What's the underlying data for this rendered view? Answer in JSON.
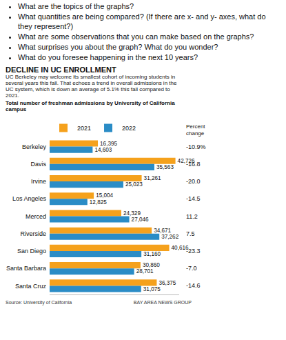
{
  "chart_data": {
    "type": "bar",
    "orientation": "horizontal",
    "annotations": [
      "What are the topics of the graphs?",
      "What quantities are being compared? (If there are x- and y- axes, what do they represent?)",
      "What are some observations that you can make based on the graphs?",
      "What surprises you about the graph? What do you wonder?",
      "What do you foresee happening in the next 10 years?"
    ],
    "title": "DECLINE IN UC ENROLLMENT",
    "subtitle": "UC Berkeley may welcome its smallest cohort of incoming students in several years this fall. That echoes a trend in overall admissions in the UC system, which is down an average of 5.1% this fall compared to 2021.",
    "subheading": "Total number of freshman admissions by University of California campus",
    "categories": [
      "Berkeley",
      "Davis",
      "Irvine",
      "Los Angeles",
      "Merced",
      "Riverside",
      "San Diego",
      "Santa Barbara",
      "Santa Cruz"
    ],
    "series": [
      {
        "name": "2021",
        "color": "#f5a11c",
        "values": [
          16395,
          42726,
          31261,
          15004,
          24329,
          34671,
          40616,
          30860,
          36375
        ],
        "value_labels": [
          "16,395",
          "42,726",
          "31,261",
          "15,004",
          "24,329",
          "34,671",
          "40,616",
          "30,860",
          "36,375"
        ]
      },
      {
        "name": "2022",
        "color": "#2a8cc6",
        "values": [
          14603,
          35563,
          25023,
          12825,
          27046,
          37262,
          31160,
          28701,
          31075
        ],
        "value_labels": [
          "14,603",
          "35,563",
          "25,023",
          "12,825",
          "27,046",
          "37,262",
          "31,160",
          "28,701",
          "31,075"
        ]
      }
    ],
    "percent_change_title": "Percent change",
    "percent_change": [
      -10.9,
      -16.8,
      -20.0,
      -14.5,
      11.2,
      7.5,
      -23.3,
      -7.0,
      -14.6
    ],
    "percent_change_labels": [
      "-10.9%",
      "-16.8",
      "-20.0",
      "-14.5",
      "11.2",
      "7.5",
      "-23.3",
      "-7.0",
      "-14.6"
    ],
    "xlim": [
      0,
      44000
    ],
    "data_labels": true,
    "tick_labels": "y",
    "grid": false,
    "legend": "top",
    "source": "Source: University of California",
    "credit": "BAY AREA NEWS GROUP"
  }
}
